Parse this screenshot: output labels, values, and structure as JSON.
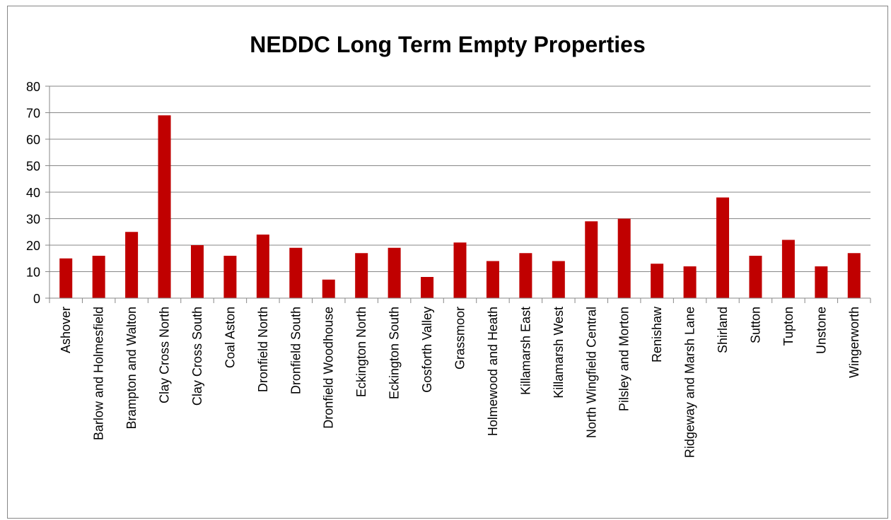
{
  "chart_data": {
    "type": "bar",
    "title": "NEDDC Long Term Empty Properties",
    "xlabel": "",
    "ylabel": "",
    "ylim": [
      0,
      80
    ],
    "yticks": [
      0,
      10,
      20,
      30,
      40,
      50,
      60,
      70,
      80
    ],
    "grid": true,
    "legend": "none",
    "bar_color": "#c00000",
    "categories": [
      "Ashover",
      "Barlow and Holmesfield",
      "Brampton and Walton",
      "Clay Cross North",
      "Clay Cross South",
      "Coal Aston",
      "Dronfield North",
      "Dronfield South",
      "Dronfield Woodhouse",
      "Eckington North",
      "Eckington South",
      "Gosforth Valley",
      "Grassmoor",
      "Holmewood and Heath",
      "Killamarsh East",
      "Killamarsh West",
      "North Wingfield Central",
      "Pilsley and Morton",
      "Renishaw",
      "Ridgeway and Marsh Lane",
      "Shirland",
      "Sutton",
      "Tupton",
      "Unstone",
      "Wingerworth"
    ],
    "values": [
      15,
      16,
      25,
      69,
      20,
      16,
      24,
      19,
      7,
      17,
      19,
      8,
      21,
      14,
      17,
      14,
      29,
      30,
      13,
      12,
      38,
      16,
      22,
      12,
      17
    ]
  }
}
